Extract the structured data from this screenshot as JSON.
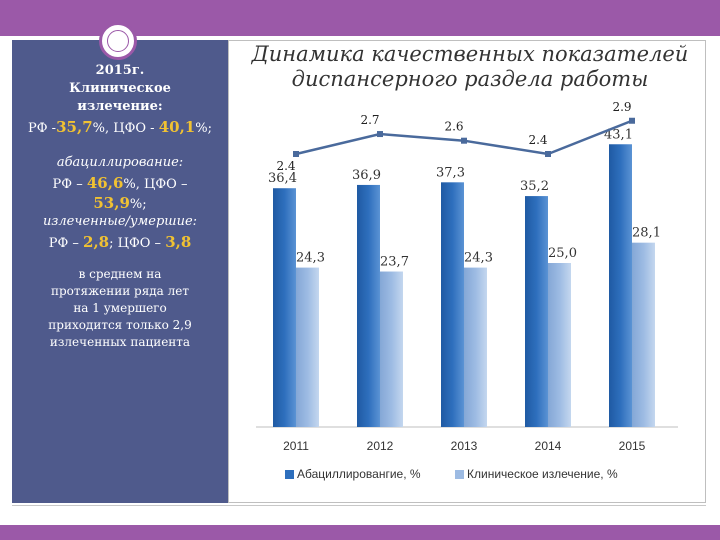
{
  "title_line1": "Динамика качественных показателей",
  "title_line2": "диспансерного раздела работы",
  "left_panel": {
    "year": "2015г.",
    "clinical_heading_1": "Клиническое",
    "clinical_heading_2": "излечение:",
    "clinical_rf_prefix": "РФ -",
    "clinical_rf_value": "35,7",
    "clinical_mid": "%, ЦФО - ",
    "clinical_cfo_value": "40,1",
    "clinical_suffix": "%;",
    "abac_heading": "абациллирование:",
    "abac_rf_prefix": "РФ – ",
    "abac_rf_value": "46,6",
    "abac_mid": "%, ЦФО –",
    "abac_cfo_value": "53,9",
    "abac_suffix": "%;",
    "ratio_heading": "излеченные/умершие:",
    "ratio_rf_prefix": "РФ – ",
    "ratio_rf_value": "2,8",
    "ratio_mid": "; ЦФО – ",
    "ratio_cfo_value": "3,8",
    "note_1": "в среднем на",
    "note_2": "протяжении ряда лет",
    "note_3": "на 1 умершего",
    "note_4": "приходится только 2,9",
    "note_5": "излеченных пациента"
  },
  "colors": {
    "bar_dark": "#2e6fbd",
    "bar_light": "#9dbbe3",
    "line": "#4a6a9c",
    "accent": "#f1c232",
    "panel": "#4f5a8c",
    "bars_top": "#9b59a8"
  },
  "chart_data": {
    "type": "bar",
    "categories": [
      "2011",
      "2012",
      "2013",
      "2014",
      "2015"
    ],
    "series": [
      {
        "name": "Абациллировангие, %",
        "values": [
          36.4,
          36.9,
          37.3,
          35.2,
          43.1
        ],
        "labels": [
          "36,4",
          "36,9",
          "37,3",
          "35,2",
          "43,1"
        ]
      },
      {
        "name": "Клиническое излечение, %",
        "values": [
          24.3,
          23.7,
          24.3,
          25.0,
          28.1
        ],
        "labels": [
          "24,3",
          "23,7",
          "24,3",
          "25,0",
          "28,1"
        ]
      }
    ],
    "overlay_line": {
      "values": [
        2.4,
        2.7,
        2.6,
        2.4,
        2.9
      ],
      "labels": [
        "2.4",
        "2.7",
        "2.6",
        "2.4",
        "2.9"
      ]
    },
    "ylim": [
      0,
      50
    ],
    "legend_position": "bottom"
  }
}
